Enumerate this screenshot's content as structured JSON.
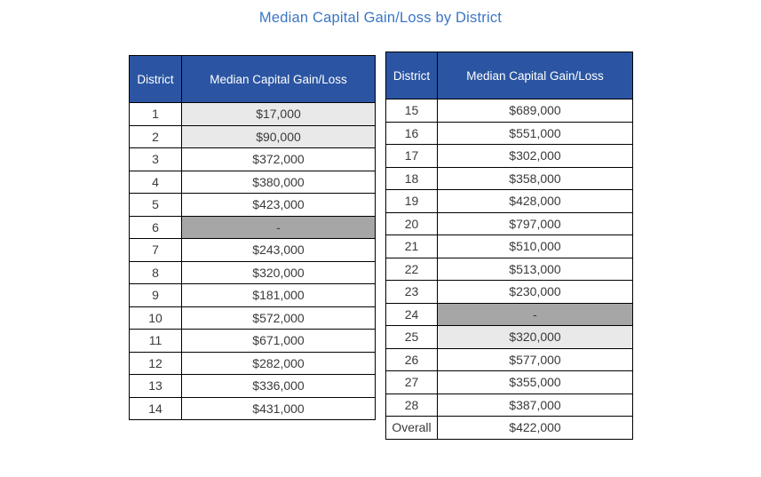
{
  "page": {
    "title": "Median Capital Gain/Loss by District"
  },
  "colors": {
    "header_bg": "#2b55a2",
    "header_text": "#ffffff",
    "title_text": "#3b76c5",
    "row_light_gray": "#e9e9e9",
    "row_dark_gray": "#a6a6a6",
    "border": "#000000",
    "cell_text": "#3a3a3a"
  },
  "tables": [
    {
      "id": "left",
      "headers": {
        "district": "District",
        "value": "Median Capital Gain/Loss"
      },
      "rows": [
        {
          "district": "1",
          "value": "$17,000",
          "shade": "light"
        },
        {
          "district": "2",
          "value": "$90,000",
          "shade": "light"
        },
        {
          "district": "3",
          "value": "$372,000",
          "shade": "none"
        },
        {
          "district": "4",
          "value": "$380,000",
          "shade": "none"
        },
        {
          "district": "5",
          "value": "$423,000",
          "shade": "none"
        },
        {
          "district": "6",
          "value": "-",
          "shade": "dark"
        },
        {
          "district": "7",
          "value": "$243,000",
          "shade": "none"
        },
        {
          "district": "8",
          "value": "$320,000",
          "shade": "none"
        },
        {
          "district": "9",
          "value": "$181,000",
          "shade": "none"
        },
        {
          "district": "10",
          "value": "$572,000",
          "shade": "none"
        },
        {
          "district": "11",
          "value": "$671,000",
          "shade": "none"
        },
        {
          "district": "12",
          "value": "$282,000",
          "shade": "none"
        },
        {
          "district": "13",
          "value": "$336,000",
          "shade": "none"
        },
        {
          "district": "14",
          "value": "$431,000",
          "shade": "none"
        }
      ]
    },
    {
      "id": "right",
      "headers": {
        "district": "District",
        "value": "Median Capital Gain/Loss"
      },
      "rows": [
        {
          "district": "15",
          "value": "$689,000",
          "shade": "none"
        },
        {
          "district": "16",
          "value": "$551,000",
          "shade": "none"
        },
        {
          "district": "17",
          "value": "$302,000",
          "shade": "none"
        },
        {
          "district": "18",
          "value": "$358,000",
          "shade": "none"
        },
        {
          "district": "19",
          "value": "$428,000",
          "shade": "none"
        },
        {
          "district": "20",
          "value": "$797,000",
          "shade": "none"
        },
        {
          "district": "21",
          "value": "$510,000",
          "shade": "none"
        },
        {
          "district": "22",
          "value": "$513,000",
          "shade": "none"
        },
        {
          "district": "23",
          "value": "$230,000",
          "shade": "none"
        },
        {
          "district": "24",
          "value": "-",
          "shade": "dark"
        },
        {
          "district": "25",
          "value": "$320,000",
          "shade": "light"
        },
        {
          "district": "26",
          "value": "$577,000",
          "shade": "none"
        },
        {
          "district": "27",
          "value": "$355,000",
          "shade": "none"
        },
        {
          "district": "28",
          "value": "$387,000",
          "shade": "none"
        },
        {
          "district": "Overall",
          "value": "$422,000",
          "shade": "none"
        }
      ]
    }
  ],
  "chart_data": {
    "type": "table",
    "title": "Median Capital Gain/Loss by District",
    "columns": [
      "District",
      "Median Capital Gain/Loss"
    ],
    "rows": [
      [
        "1",
        "$17,000"
      ],
      [
        "2",
        "$90,000"
      ],
      [
        "3",
        "$372,000"
      ],
      [
        "4",
        "$380,000"
      ],
      [
        "5",
        "$423,000"
      ],
      [
        "6",
        "-"
      ],
      [
        "7",
        "$243,000"
      ],
      [
        "8",
        "$320,000"
      ],
      [
        "9",
        "$181,000"
      ],
      [
        "10",
        "$572,000"
      ],
      [
        "11",
        "$671,000"
      ],
      [
        "12",
        "$282,000"
      ],
      [
        "13",
        "$336,000"
      ],
      [
        "14",
        "$431,000"
      ],
      [
        "15",
        "$689,000"
      ],
      [
        "16",
        "$551,000"
      ],
      [
        "17",
        "$302,000"
      ],
      [
        "18",
        "$358,000"
      ],
      [
        "19",
        "$428,000"
      ],
      [
        "20",
        "$797,000"
      ],
      [
        "21",
        "$510,000"
      ],
      [
        "22",
        "$513,000"
      ],
      [
        "23",
        "$230,000"
      ],
      [
        "24",
        "-"
      ],
      [
        "25",
        "$320,000"
      ],
      [
        "26",
        "$577,000"
      ],
      [
        "27",
        "$355,000"
      ],
      [
        "28",
        "$387,000"
      ],
      [
        "Overall",
        "$422,000"
      ]
    ]
  }
}
